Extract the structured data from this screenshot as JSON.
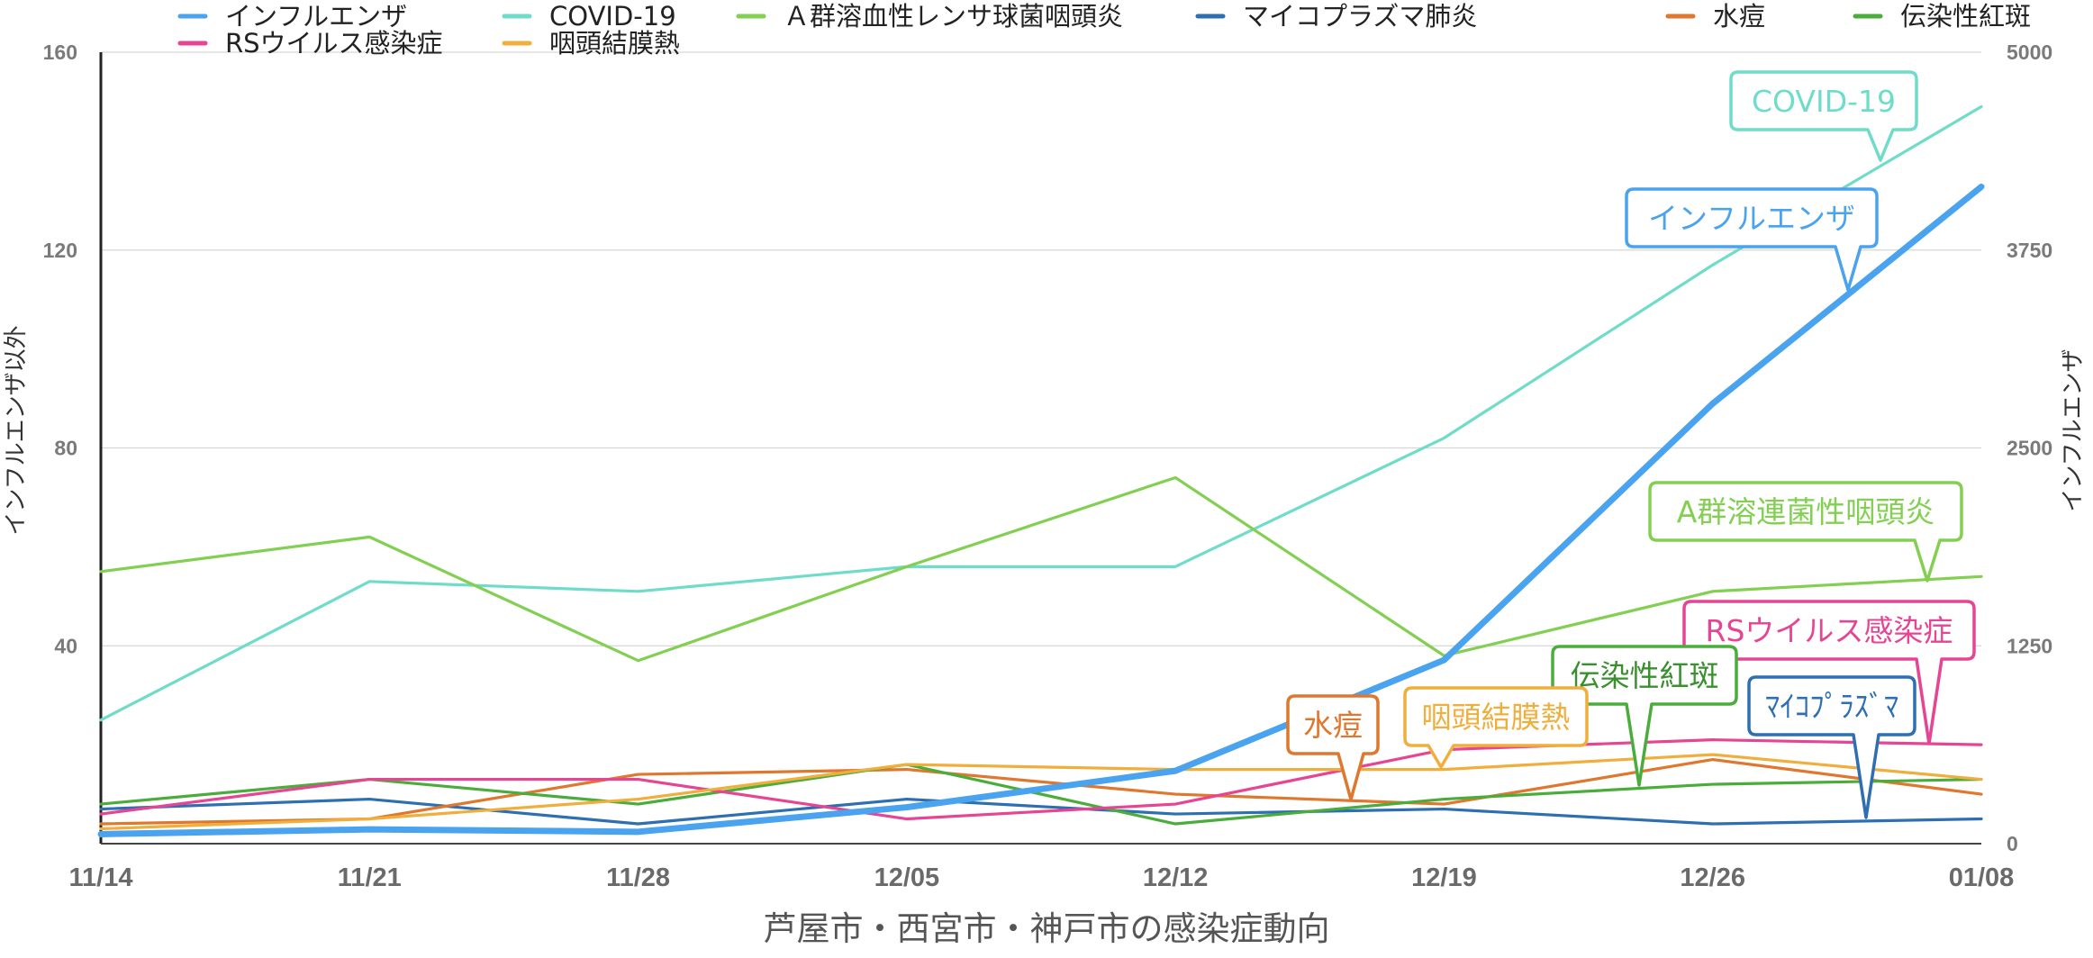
{
  "chart_data": {
    "type": "line",
    "title": "",
    "xlabel": "芦屋市・西宮市・神戸市の感染症動向",
    "ylabel_left": "インフルエンザ以外",
    "ylabel_right": "インフルエンザ",
    "categories": [
      "11/14",
      "11/21",
      "11/28",
      "12/05",
      "12/12",
      "12/19",
      "12/26",
      "01/08"
    ],
    "y_left": {
      "range": [
        0,
        160
      ],
      "ticks": [
        0,
        40,
        80,
        120,
        160
      ],
      "tick_labels": [
        "",
        "40",
        "80",
        "120",
        "160"
      ]
    },
    "y_right": {
      "range": [
        0,
        5000
      ],
      "ticks": [
        0,
        1250,
        2500,
        3750,
        5000
      ],
      "tick_labels": [
        "0",
        "1250",
        "2500",
        "3750",
        "5000"
      ]
    },
    "grid": true,
    "legend_position": "top",
    "series": [
      {
        "name": "インフルエンザ",
        "axis": "right",
        "color": "#4aa3ee",
        "values": [
          60,
          90,
          75,
          230,
          460,
          1160,
          2780,
          4150
        ]
      },
      {
        "name": "COVID-19",
        "axis": "left",
        "color": "#6fdcc9",
        "values": [
          25,
          53,
          51,
          56,
          56,
          82,
          117,
          149
        ]
      },
      {
        "name": "Ａ群溶血性レンサ球菌咽頭炎",
        "axis": "left",
        "color": "#82cf52",
        "values": [
          55,
          62,
          37,
          56,
          74,
          38,
          51,
          54
        ]
      },
      {
        "name": "マイコプラズマ肺炎",
        "axis": "left",
        "color": "#2d6fb0",
        "values": [
          7,
          9,
          4,
          9,
          6,
          7,
          4,
          5
        ]
      },
      {
        "name": "水痘",
        "axis": "left",
        "color": "#e0772e",
        "values": [
          4,
          5,
          14,
          15,
          10,
          8,
          17,
          10
        ]
      },
      {
        "name": "伝染性紅斑",
        "axis": "left",
        "color": "#4aad3b",
        "values": [
          8,
          13,
          8,
          16,
          4,
          9,
          12,
          13
        ]
      },
      {
        "name": "RSウイルス感染症",
        "axis": "left",
        "color": "#e64593",
        "values": [
          6,
          13,
          13,
          5,
          8,
          19,
          21,
          20
        ]
      },
      {
        "name": "咽頭結膜熱",
        "axis": "left",
        "color": "#f0ae3c",
        "values": [
          3,
          5,
          9,
          16,
          15,
          15,
          18,
          13
        ]
      }
    ],
    "callouts": [
      {
        "text": "COVID-19",
        "color": "#6fdcc9",
        "text_color": "#6fdcc9"
      },
      {
        "text": "インフルエンザ",
        "color": "#4aa3ee",
        "text_color": "#4aa3ee"
      },
      {
        "text": "A群溶連菌性咽頭炎",
        "color": "#82cf52",
        "text_color": "#82cf52"
      },
      {
        "text": "RSウイルス感染症",
        "color": "#e64593",
        "text_color": "#e64593"
      },
      {
        "text": "伝染性紅斑",
        "color": "#4aad3b",
        "text_color": "#3a8f2f"
      },
      {
        "text": "ﾏｲｺﾌﾟﾗｽﾞﾏ",
        "color": "#2d6fb0",
        "text_color": "#2d6fb0"
      },
      {
        "text": "咽頭結膜熱",
        "color": "#f0ae3c",
        "text_color": "#f0ae3c"
      },
      {
        "text": "水痘",
        "color": "#e0772e",
        "text_color": "#e0772e"
      }
    ]
  }
}
